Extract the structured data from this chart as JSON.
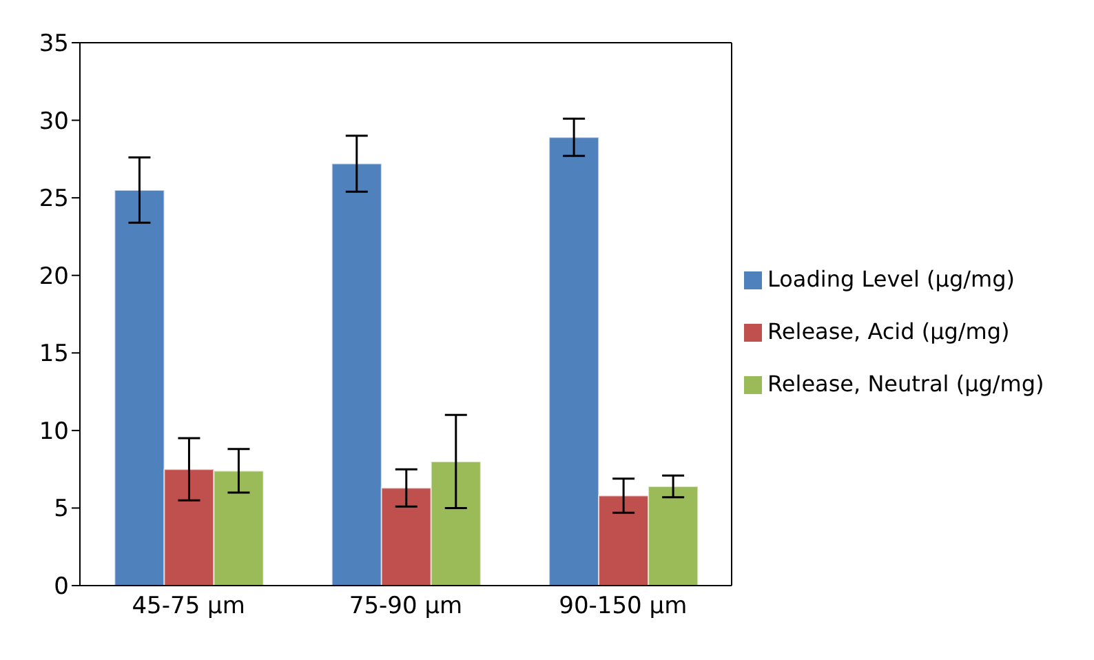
{
  "chart_data": {
    "type": "bar",
    "categories": [
      "45-75 µm",
      "75-90 µm",
      "90-150 µm"
    ],
    "series": [
      {
        "name": "Loading Level (µg/mg)",
        "color": "#4f81bd",
        "values": [
          25.5,
          27.2,
          28.9
        ],
        "errors": [
          2.1,
          1.8,
          1.2
        ]
      },
      {
        "name": "Release, Acid (µg/mg)",
        "color": "#c0504d",
        "values": [
          7.5,
          6.3,
          5.8
        ],
        "errors": [
          2.0,
          1.2,
          1.1
        ]
      },
      {
        "name": "Release, Neutral (µg/mg)",
        "color": "#9bbb59",
        "values": [
          7.4,
          8.0,
          6.4
        ],
        "errors": [
          1.4,
          3.0,
          0.7
        ]
      }
    ],
    "ylim": [
      0,
      35
    ],
    "yticks": [
      0,
      5,
      10,
      15,
      20,
      25,
      30,
      35
    ],
    "legend": "right"
  }
}
